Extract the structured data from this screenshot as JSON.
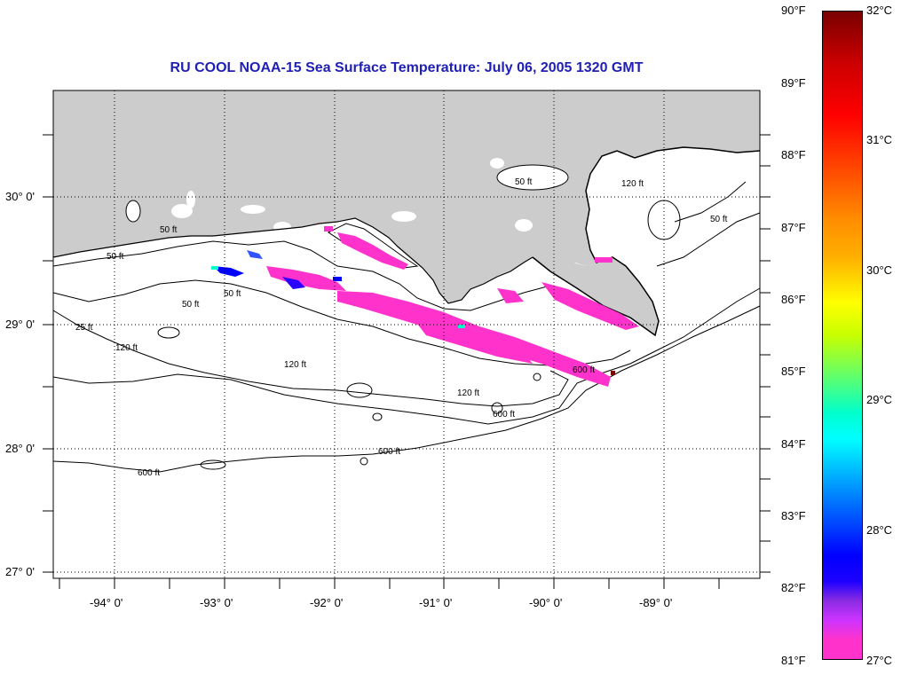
{
  "title": "RU COOL  NOAA-15  Sea Surface Temperature:  July 06, 2005 1320 GMT",
  "map": {
    "land_color": "#cccccc",
    "water_color": "#ffffff",
    "sst_low_color": "#ff33cc",
    "sst_mid_color": "#0000ff",
    "sst_high_color": "#00ffcc",
    "lat_labels": [
      "30° 0'",
      "29° 0'",
      "28° 0'",
      "27° 0'"
    ],
    "lon_labels": [
      "-94° 0'",
      "-93° 0'",
      "-92° 0'",
      "-91° 0'",
      "-90° 0'",
      "-89° 0'"
    ],
    "contour_labels": [
      "50 ft",
      "50 ft",
      "50 ft",
      "50 ft",
      "50 ft",
      "50 ft",
      "120 ft",
      "120 ft",
      "120 ft",
      "600 ft",
      "600 ft",
      "600 ft",
      "600 ft",
      "25 ft",
      "120 ft"
    ]
  },
  "colorbar": {
    "fahrenheit": [
      "90°F",
      "89°F",
      "88°F",
      "87°F",
      "86°F",
      "85°F",
      "84°F",
      "83°F",
      "82°F",
      "81°F"
    ],
    "celsius": [
      "32°C",
      "31°C",
      "30°C",
      "29°C",
      "28°C",
      "27°C"
    ]
  }
}
